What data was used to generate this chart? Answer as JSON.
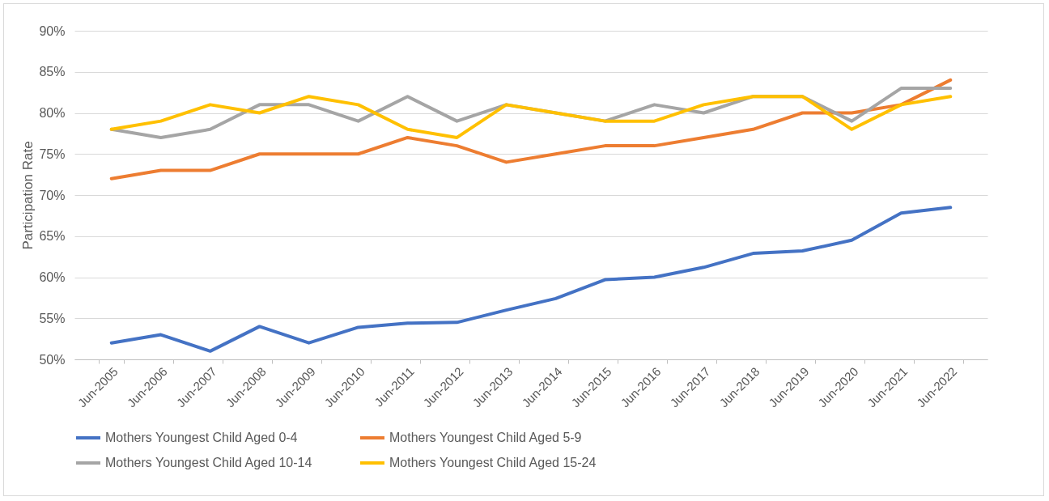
{
  "chart_data": {
    "type": "line",
    "ylabel": "Participation Rate",
    "categories": [
      "Jun-2005",
      "Jun-2006",
      "Jun-2007",
      "Jun-2008",
      "Jun-2009",
      "Jun-2010",
      "Jun-2011",
      "Jun-2012",
      "Jun-2013",
      "Jun-2014",
      "Jun-2015",
      "Jun-2016",
      "Jun-2017",
      "Jun-2018",
      "Jun-2019",
      "Jun-2020",
      "Jun-2021",
      "Jun-2022"
    ],
    "series": [
      {
        "name": "Mothers Youngest Child Aged 0-4",
        "color": "#4472c4",
        "values": [
          52,
          53,
          51,
          54,
          52,
          53.9,
          54.4,
          54.5,
          56.0,
          57.4,
          59.7,
          60.0,
          61.2,
          62.9,
          63.2,
          64.5,
          67.8,
          68.5
        ]
      },
      {
        "name": "Mothers Youngest Child Aged 5-9",
        "color": "#ed7d31",
        "values": [
          72,
          73,
          73,
          75,
          75,
          75,
          77,
          76,
          74,
          75,
          76,
          76,
          77,
          78,
          80,
          80,
          81,
          84
        ]
      },
      {
        "name": "Mothers Youngest Child Aged 10-14",
        "color": "#a5a5a5",
        "values": [
          78,
          77,
          78,
          81,
          81,
          79,
          82,
          79,
          81,
          80,
          79,
          81,
          80,
          82,
          82,
          79,
          83,
          83
        ]
      },
      {
        "name": "Mothers Youngest Child Aged 15-24",
        "color": "#ffc000",
        "values": [
          78,
          79,
          81,
          80,
          82,
          81,
          78,
          77,
          81,
          80,
          79,
          79,
          81,
          82,
          82,
          78,
          81,
          82
        ]
      }
    ],
    "ylim": [
      50,
      90
    ],
    "yticks": [
      {
        "value": 50,
        "label": "50%"
      },
      {
        "value": 55,
        "label": "55%"
      },
      {
        "value": 60,
        "label": "60%"
      },
      {
        "value": 65,
        "label": "65%"
      },
      {
        "value": 70,
        "label": "70%"
      },
      {
        "value": 75,
        "label": "75%"
      },
      {
        "value": 80,
        "label": "80%"
      },
      {
        "value": 85,
        "label": "85%"
      },
      {
        "value": 90,
        "label": "90%"
      }
    ],
    "grid": "y",
    "legend": "bottom"
  }
}
